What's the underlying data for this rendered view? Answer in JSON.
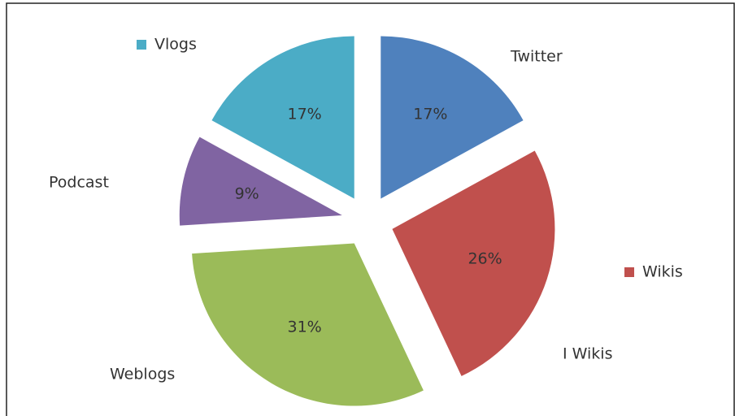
{
  "chart_data": {
    "type": "pie",
    "categories": [
      "Twitter",
      "Wikis",
      "Weblogs",
      "Podcast",
      "Vlogs"
    ],
    "values": [
      17,
      26,
      31,
      9,
      17
    ],
    "value_labels": [
      "17%",
      "26%",
      "31%",
      "9%",
      "17%"
    ],
    "colors": [
      "#4f81bd",
      "#c0504d",
      "#9bbb59",
      "#8064a2",
      "#4bacc6"
    ],
    "annotations": [
      "I Wikis"
    ]
  }
}
